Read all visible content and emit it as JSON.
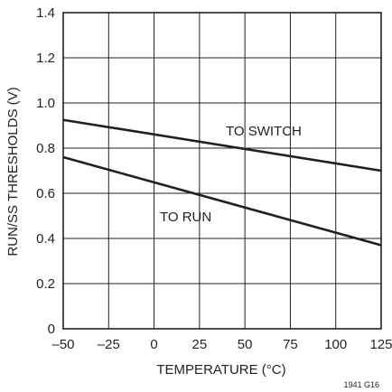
{
  "chart_data": {
    "type": "line",
    "xlabel": "TEMPERATURE (°C)",
    "ylabel": "RUN/SS THRESHOLDS (V)",
    "xlim": [
      -50,
      125
    ],
    "ylim": [
      0,
      1.4
    ],
    "x_ticks": [
      -50,
      -25,
      0,
      25,
      50,
      75,
      100,
      125
    ],
    "x_tick_labels": [
      "–50",
      "–25",
      "0",
      "25",
      "50",
      "75",
      "100",
      "125"
    ],
    "y_ticks": [
      0,
      0.2,
      0.4,
      0.6,
      0.8,
      1.0,
      1.2,
      1.4
    ],
    "y_tick_labels": [
      "0",
      "0.2",
      "0.4",
      "0.6",
      "0.8",
      "1.0",
      "1.2",
      "1.4"
    ],
    "grid": true,
    "series": [
      {
        "name": "TO SWITCH",
        "x": [
          -50,
          125
        ],
        "y": [
          0.925,
          0.7
        ]
      },
      {
        "name": "TO RUN",
        "x": [
          -50,
          125
        ],
        "y": [
          0.76,
          0.37
        ]
      }
    ],
    "annotations": [
      "TO SWITCH",
      "TO RUN"
    ],
    "figure_id": "1941 G16"
  }
}
